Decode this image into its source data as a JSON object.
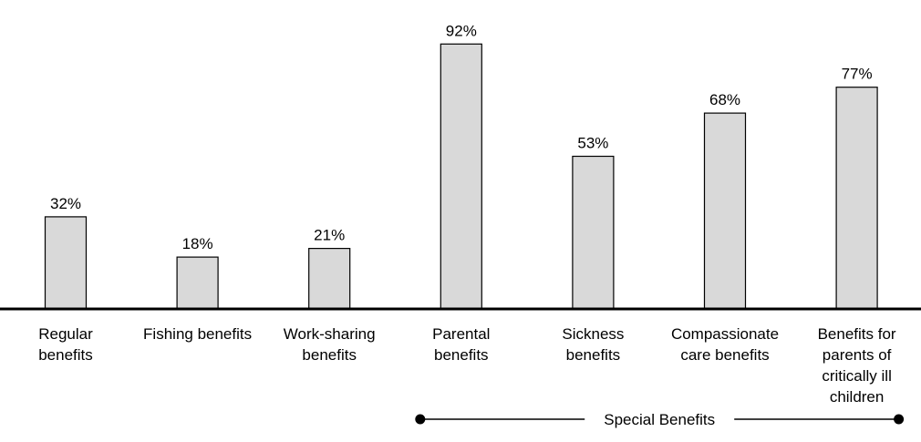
{
  "chart_data": {
    "type": "bar",
    "title": "",
    "xlabel": "",
    "ylabel": "",
    "ylim": [
      0,
      100
    ],
    "grid": false,
    "value_format": "percent",
    "categories": [
      [
        "Regular",
        "benefits"
      ],
      [
        "Fishing benefits"
      ],
      [
        "Work-sharing",
        "benefits"
      ],
      [
        "Parental",
        "benefits"
      ],
      [
        "Sickness",
        "benefits"
      ],
      [
        "Compassionate",
        "care benefits"
      ],
      [
        "Benefits for",
        "parents of",
        "critically ill",
        "children"
      ]
    ],
    "values": [
      32,
      18,
      21,
      92,
      53,
      68,
      77
    ],
    "data_labels": [
      "32%",
      "18%",
      "21%",
      "92%",
      "53%",
      "68%",
      "77%"
    ],
    "bar_color": "#d9d9d9",
    "bar_outline": "#000000",
    "group_annotation": {
      "label": "Special Benefits",
      "from_category": 3,
      "to_category": 6
    }
  }
}
